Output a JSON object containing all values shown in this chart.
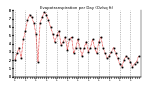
{
  "title": "Evapotranspiration per Day (Oz/sq ft)",
  "background_color": "#ffffff",
  "line_color": "#dd0000",
  "marker_color": "#000000",
  "grid_color": "#888888",
  "ylim": [
    0,
    8
  ],
  "yticks": [
    0,
    1,
    2,
    3,
    4,
    5,
    6,
    7,
    8
  ],
  "ytick_labels": [
    "0",
    "1",
    "2",
    "3",
    "4",
    "5",
    "6",
    "7",
    "8"
  ],
  "values": [
    2.0,
    2.8,
    3.5,
    2.2,
    4.5,
    5.5,
    6.8,
    7.5,
    7.2,
    6.5,
    5.2,
    1.8,
    6.5,
    7.2,
    7.8,
    7.5,
    6.8,
    6.0,
    5.2,
    4.2,
    5.0,
    5.5,
    3.8,
    4.2,
    4.8,
    3.2,
    4.5,
    4.8,
    2.8,
    3.5,
    4.5,
    3.5,
    2.5,
    3.5,
    4.2,
    3.0,
    3.5,
    4.5,
    3.5,
    2.8,
    4.2,
    4.8,
    3.5,
    2.8,
    2.2,
    2.5,
    3.0,
    3.5,
    2.8,
    2.2,
    1.5,
    1.2,
    2.0,
    2.5,
    2.2,
    1.8,
    1.2,
    1.5,
    1.8,
    2.5
  ],
  "x_tick_positions": [
    0,
    5,
    10,
    15,
    20,
    25,
    30,
    35,
    40,
    45,
    50,
    55
  ],
  "x_tick_labels": [
    "1",
    "1",
    "1",
    "1",
    "1",
    "1",
    "1",
    "1",
    "1",
    "1",
    "1",
    "1"
  ]
}
